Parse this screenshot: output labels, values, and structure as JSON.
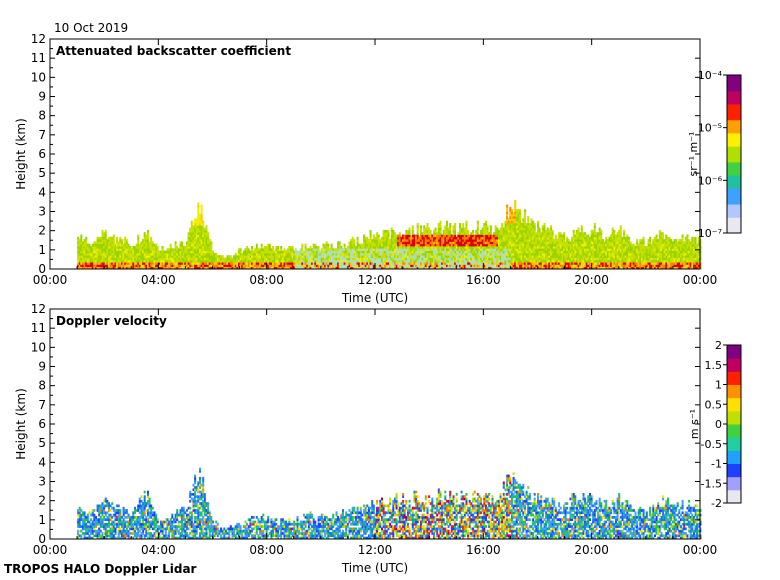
{
  "header": {
    "date": "10 Oct 2019"
  },
  "footer": {
    "instrument": "TROPOS HALO Doppler Lidar"
  },
  "chart_data": [
    {
      "type": "heatmap",
      "title": "Attenuated backscatter coefficient",
      "xlabel": "Time (UTC)",
      "ylabel": "Height (km)",
      "x_ticks": [
        "00:00",
        "04:00",
        "08:00",
        "12:00",
        "16:00",
        "20:00",
        "00:00"
      ],
      "xlim_hours": [
        0,
        24
      ],
      "y_ticks": [
        "0",
        "1",
        "2",
        "3",
        "4",
        "5",
        "6",
        "7",
        "8",
        "9",
        "10",
        "11",
        "12"
      ],
      "ylim_km": [
        0,
        12
      ],
      "colorbar": {
        "scale": "log",
        "ticks": [
          "10⁻⁷",
          "10⁻⁶",
          "10⁻⁵",
          "10⁻⁴"
        ],
        "label": "sr⁻¹ m⁻¹",
        "range": [
          1e-07,
          0.0001
        ]
      },
      "data_extent_hours": [
        1.0,
        24.0
      ],
      "signal_top_km": [
        [
          1.0,
          1.7
        ],
        [
          1.5,
          1.4
        ],
        [
          2.0,
          1.9
        ],
        [
          2.5,
          1.6
        ],
        [
          3.0,
          1.3
        ],
        [
          3.5,
          2.0
        ],
        [
          4.0,
          1.0
        ],
        [
          4.5,
          1.2
        ],
        [
          5.0,
          1.5
        ],
        [
          5.5,
          3.5
        ],
        [
          6.0,
          0.9
        ],
        [
          6.5,
          0.6
        ],
        [
          7.0,
          1.0
        ],
        [
          7.5,
          1.1
        ],
        [
          8.0,
          1.2
        ],
        [
          8.5,
          1.1
        ],
        [
          9.0,
          1.0
        ],
        [
          9.5,
          1.3
        ],
        [
          10.0,
          1.2
        ],
        [
          10.5,
          1.3
        ],
        [
          11.0,
          1.4
        ],
        [
          11.5,
          1.6
        ],
        [
          12.0,
          1.9
        ],
        [
          12.5,
          2.0
        ],
        [
          13.0,
          2.1
        ],
        [
          13.5,
          2.2
        ],
        [
          14.0,
          2.2
        ],
        [
          14.5,
          2.3
        ],
        [
          15.0,
          2.2
        ],
        [
          15.5,
          2.3
        ],
        [
          16.0,
          2.3
        ],
        [
          16.5,
          2.1
        ],
        [
          17.0,
          3.6
        ],
        [
          17.5,
          2.9
        ],
        [
          18.0,
          2.3
        ],
        [
          18.5,
          2.0
        ],
        [
          19.0,
          1.6
        ],
        [
          19.5,
          2.0
        ],
        [
          20.0,
          2.2
        ],
        [
          20.5,
          1.7
        ],
        [
          21.0,
          2.1
        ],
        [
          21.5,
          1.6
        ],
        [
          22.0,
          1.4
        ],
        [
          22.5,
          1.9
        ],
        [
          23.0,
          1.8
        ],
        [
          23.5,
          1.7
        ],
        [
          24.0,
          1.5
        ]
      ]
    },
    {
      "type": "heatmap",
      "title": "Doppler velocity",
      "xlabel": "Time (UTC)",
      "ylabel": "Height (km)",
      "x_ticks": [
        "00:00",
        "04:00",
        "08:00",
        "12:00",
        "16:00",
        "20:00",
        "00:00"
      ],
      "xlim_hours": [
        0,
        24
      ],
      "y_ticks": [
        "0",
        "1",
        "2",
        "3",
        "4",
        "5",
        "6",
        "7",
        "8",
        "9",
        "10",
        "11",
        "12"
      ],
      "ylim_km": [
        0,
        12
      ],
      "colorbar": {
        "scale": "linear",
        "ticks": [
          "-2",
          "-1.5",
          "-1",
          "-0.5",
          "0",
          "0.5",
          "1",
          "1.5",
          "2"
        ],
        "label": "m s⁻¹",
        "range": [
          -2,
          2
        ]
      },
      "data_extent_hours": [
        1.0,
        24.0
      ],
      "signal_top_km": [
        [
          1.0,
          1.7
        ],
        [
          1.5,
          1.5
        ],
        [
          2.0,
          1.9
        ],
        [
          2.5,
          1.6
        ],
        [
          3.0,
          1.3
        ],
        [
          3.5,
          2.6
        ],
        [
          4.0,
          1.0
        ],
        [
          4.5,
          1.2
        ],
        [
          5.0,
          1.9
        ],
        [
          5.5,
          3.7
        ],
        [
          6.0,
          0.9
        ],
        [
          6.5,
          0.5
        ],
        [
          7.0,
          0.9
        ],
        [
          7.5,
          1.1
        ],
        [
          8.0,
          1.2
        ],
        [
          8.5,
          1.1
        ],
        [
          9.0,
          1.0
        ],
        [
          9.5,
          1.3
        ],
        [
          10.0,
          1.2
        ],
        [
          10.5,
          1.3
        ],
        [
          11.0,
          1.4
        ],
        [
          11.5,
          1.6
        ],
        [
          12.0,
          1.9
        ],
        [
          12.5,
          2.1
        ],
        [
          13.0,
          2.2
        ],
        [
          13.5,
          2.3
        ],
        [
          14.0,
          2.2
        ],
        [
          14.5,
          2.4
        ],
        [
          15.0,
          2.2
        ],
        [
          15.5,
          2.3
        ],
        [
          16.0,
          2.4
        ],
        [
          16.5,
          2.2
        ],
        [
          17.0,
          3.8
        ],
        [
          17.5,
          2.6
        ],
        [
          18.0,
          2.3
        ],
        [
          18.5,
          2.0
        ],
        [
          19.0,
          1.7
        ],
        [
          19.5,
          2.5
        ],
        [
          20.0,
          2.2
        ],
        [
          20.5,
          1.8
        ],
        [
          21.0,
          2.2
        ],
        [
          21.5,
          1.6
        ],
        [
          22.0,
          1.4
        ],
        [
          22.5,
          2.1
        ],
        [
          23.0,
          1.9
        ],
        [
          23.5,
          1.8
        ],
        [
          24.0,
          1.6
        ]
      ]
    }
  ]
}
